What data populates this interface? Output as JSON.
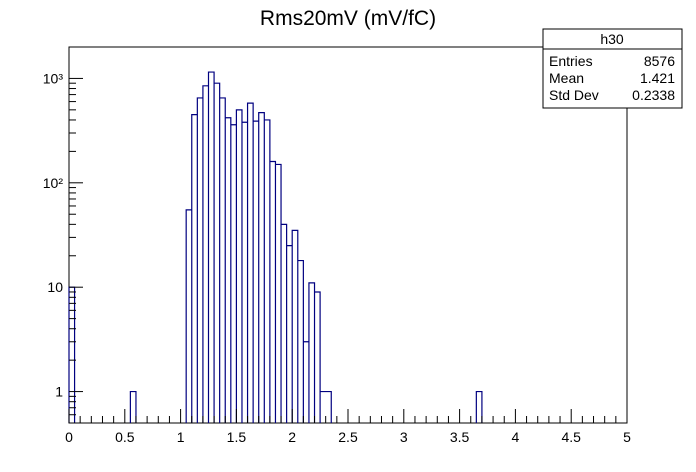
{
  "chart_data": {
    "type": "histogram",
    "title": "Rms20mV (mV/fC)",
    "xlabel": "",
    "ylabel": "",
    "xlim": [
      0,
      5
    ],
    "ylim": [
      0.5,
      2000
    ],
    "y_scale": "log",
    "x_ticks": [
      0,
      0.5,
      1,
      1.5,
      2,
      2.5,
      3,
      3.5,
      4,
      4.5,
      5
    ],
    "x_tick_labels": [
      "0",
      "0.5",
      "1",
      "1.5",
      "2",
      "2.5",
      "3",
      "3.5",
      "4",
      "4.5",
      "5"
    ],
    "y_ticks": [
      1,
      10,
      100,
      1000
    ],
    "y_tick_labels": [
      "1",
      "10",
      "10²",
      "10³"
    ],
    "line_color": "#000080",
    "bin_width": 0.05,
    "bins": [
      {
        "x0": 0.0,
        "x1": 0.05,
        "count": 10
      },
      {
        "x0": 0.55,
        "x1": 0.6,
        "count": 1
      },
      {
        "x0": 1.05,
        "x1": 1.1,
        "count": 55
      },
      {
        "x0": 1.1,
        "x1": 1.15,
        "count": 450
      },
      {
        "x0": 1.15,
        "x1": 1.2,
        "count": 650
      },
      {
        "x0": 1.2,
        "x1": 1.25,
        "count": 850
      },
      {
        "x0": 1.25,
        "x1": 1.3,
        "count": 1150
      },
      {
        "x0": 1.3,
        "x1": 1.35,
        "count": 900
      },
      {
        "x0": 1.35,
        "x1": 1.4,
        "count": 650
      },
      {
        "x0": 1.4,
        "x1": 1.45,
        "count": 420
      },
      {
        "x0": 1.45,
        "x1": 1.5,
        "count": 360
      },
      {
        "x0": 1.5,
        "x1": 1.55,
        "count": 500
      },
      {
        "x0": 1.55,
        "x1": 1.6,
        "count": 380
      },
      {
        "x0": 1.6,
        "x1": 1.65,
        "count": 580
      },
      {
        "x0": 1.65,
        "x1": 1.7,
        "count": 390
      },
      {
        "x0": 1.7,
        "x1": 1.75,
        "count": 470
      },
      {
        "x0": 1.75,
        "x1": 1.8,
        "count": 400
      },
      {
        "x0": 1.8,
        "x1": 1.85,
        "count": 160
      },
      {
        "x0": 1.85,
        "x1": 1.9,
        "count": 150
      },
      {
        "x0": 1.9,
        "x1": 1.95,
        "count": 40
      },
      {
        "x0": 1.95,
        "x1": 2.0,
        "count": 25
      },
      {
        "x0": 2.0,
        "x1": 2.05,
        "count": 35
      },
      {
        "x0": 2.05,
        "x1": 2.1,
        "count": 18
      },
      {
        "x0": 2.1,
        "x1": 2.15,
        "count": 3
      },
      {
        "x0": 2.15,
        "x1": 2.2,
        "count": 11
      },
      {
        "x0": 2.2,
        "x1": 2.25,
        "count": 9
      },
      {
        "x0": 2.25,
        "x1": 2.35,
        "count": 1
      },
      {
        "x0": 3.65,
        "x1": 3.7,
        "count": 1
      }
    ],
    "stats_box": {
      "name": "h30",
      "rows": [
        {
          "label": "Entries",
          "value": "8576"
        },
        {
          "label": "Mean",
          "value": "1.421"
        },
        {
          "label": "Std Dev",
          "value": "0.2338"
        }
      ]
    }
  }
}
